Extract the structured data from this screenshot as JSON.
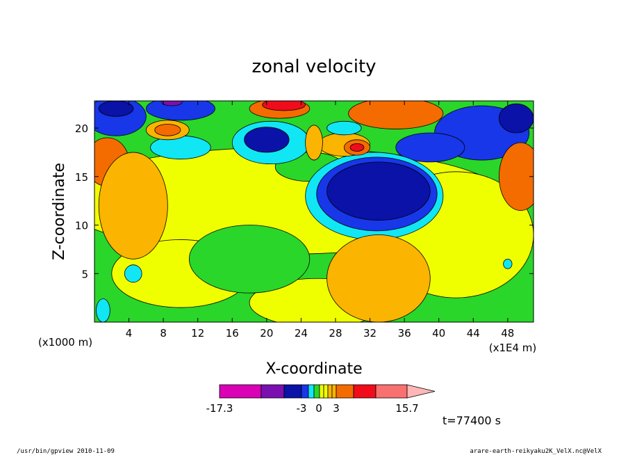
{
  "colors": {
    "magenta": "#d900b5",
    "purple": "#7a10b0",
    "navy": "#0a12a8",
    "blue": "#1737e8",
    "cyan": "#11e6f5",
    "green": "#2ad62a",
    "yellow": "#f0ff00",
    "lightorange": "#fbb400",
    "orange": "#f46b00",
    "red": "#f00c1a",
    "salmon": "#f97070",
    "pink": "#ffb6b6"
  },
  "chart_data": {
    "type": "heatmap",
    "title": "zonal velocity",
    "xlabel": "X-coordinate",
    "ylabel": "Z-coordinate",
    "x_units": "(x1E4 m)",
    "y_units": "(x1000 m)",
    "xlim": [
      0,
      51
    ],
    "ylim": [
      0,
      22.8
    ],
    "xticks": [
      4,
      8,
      12,
      16,
      20,
      24,
      28,
      32,
      36,
      40,
      44,
      48
    ],
    "yticks": [
      5,
      10,
      15,
      20
    ],
    "colorbar": {
      "min": -17.3,
      "max": 15.7,
      "tick_labels": [
        "-17.3",
        "-3",
        "0",
        "3",
        "15.7"
      ],
      "colors": [
        "magenta",
        "purple",
        "navy",
        "blue",
        "cyan",
        "green",
        "yellow",
        "yellow",
        "lightorange",
        "lightorange",
        "orange",
        "red",
        "salmon",
        "pink"
      ],
      "widths": [
        60,
        33,
        25,
        10,
        8,
        8,
        6,
        6,
        6,
        6,
        25,
        32,
        45,
        40
      ]
    },
    "regions": [
      {
        "color": "blue",
        "cx": 2.5,
        "cy": 21.2,
        "rx": 3.5,
        "ry": 2.0
      },
      {
        "color": "blue",
        "cx": 10.0,
        "cy": 22.0,
        "rx": 4.0,
        "ry": 1.2
      },
      {
        "color": "blue",
        "cx": 45.0,
        "cy": 19.5,
        "rx": 5.5,
        "ry": 2.8
      },
      {
        "color": "blue",
        "cx": 39.0,
        "cy": 18.0,
        "rx": 4.0,
        "ry": 1.5
      },
      {
        "color": "cyan",
        "cx": 32.5,
        "cy": 13.0,
        "rx": 8.0,
        "ry": 4.5
      },
      {
        "color": "cyan",
        "cx": 10.0,
        "cy": 18.0,
        "rx": 3.5,
        "ry": 1.2
      },
      {
        "color": "cyan",
        "cx": 20.5,
        "cy": 18.5,
        "rx": 4.5,
        "ry": 2.2
      },
      {
        "color": "blue",
        "cx": 32.8,
        "cy": 13.2,
        "rx": 7.0,
        "ry": 3.8
      },
      {
        "color": "navy",
        "cx": 33.0,
        "cy": 13.5,
        "rx": 6.0,
        "ry": 3.0
      },
      {
        "color": "navy",
        "cx": 20.0,
        "cy": 18.8,
        "rx": 2.6,
        "ry": 1.3
      },
      {
        "color": "navy",
        "cx": 2.5,
        "cy": 22.0,
        "rx": 2.0,
        "ry": 0.8
      },
      {
        "color": "navy",
        "cx": 49.0,
        "cy": 21.0,
        "rx": 2.0,
        "ry": 1.5
      },
      {
        "color": "purple",
        "cx": 9.0,
        "cy": 22.7,
        "rx": 1.2,
        "ry": 0.4
      },
      {
        "color": "orange",
        "cx": 21.5,
        "cy": 22.0,
        "rx": 3.5,
        "ry": 1.0
      },
      {
        "color": "red",
        "cx": 22.0,
        "cy": 22.4,
        "rx": 2.5,
        "ry": 0.6
      },
      {
        "color": "orange",
        "cx": 35.0,
        "cy": 21.5,
        "rx": 5.5,
        "ry": 1.6
      },
      {
        "color": "lightorange",
        "cx": 8.5,
        "cy": 19.8,
        "rx": 2.5,
        "ry": 1.0
      },
      {
        "color": "orange",
        "cx": 8.5,
        "cy": 19.8,
        "rx": 1.5,
        "ry": 0.6
      },
      {
        "color": "lightorange",
        "cx": 29.0,
        "cy": 18.3,
        "rx": 3.0,
        "ry": 1.2
      },
      {
        "color": "orange",
        "cx": 30.5,
        "cy": 18.0,
        "rx": 1.5,
        "ry": 0.8
      },
      {
        "color": "red",
        "cx": 30.5,
        "cy": 18.0,
        "rx": 0.8,
        "ry": 0.4
      },
      {
        "color": "cyan",
        "cx": 29.0,
        "cy": 20.0,
        "rx": 2.0,
        "ry": 0.7
      },
      {
        "color": "lightorange",
        "cx": 25.5,
        "cy": 18.5,
        "rx": 1.0,
        "ry": 1.8
      },
      {
        "color": "orange",
        "cx": 1.5,
        "cy": 16.5,
        "rx": 2.5,
        "ry": 2.5
      },
      {
        "color": "orange",
        "cx": 49.5,
        "cy": 15.0,
        "rx": 2.5,
        "ry": 3.5
      },
      {
        "color": "orange",
        "cx": 32.0,
        "cy": 5.5,
        "rx": 4.0,
        "ry": 2.5
      },
      {
        "color": "lightorange",
        "cx": 33.0,
        "cy": 4.5,
        "rx": 6.0,
        "ry": 4.5
      },
      {
        "color": "lightorange",
        "cx": 4.5,
        "cy": 12.0,
        "rx": 4.0,
        "ry": 5.5
      },
      {
        "color": "cyan",
        "cx": 4.5,
        "cy": 5.0,
        "rx": 1.0,
        "ry": 0.9
      },
      {
        "color": "cyan",
        "cx": 1.0,
        "cy": 1.2,
        "rx": 0.8,
        "ry": 1.2
      },
      {
        "color": "cyan",
        "cx": 48.0,
        "cy": 6.0,
        "rx": 0.5,
        "ry": 0.5
      }
    ]
  },
  "footer": {
    "left": "/usr/bin/gpview  2010-11-09",
    "right": "arare-earth-reikyaku2K_VelX.nc@VelX"
  },
  "time_label": "t=77400 s"
}
